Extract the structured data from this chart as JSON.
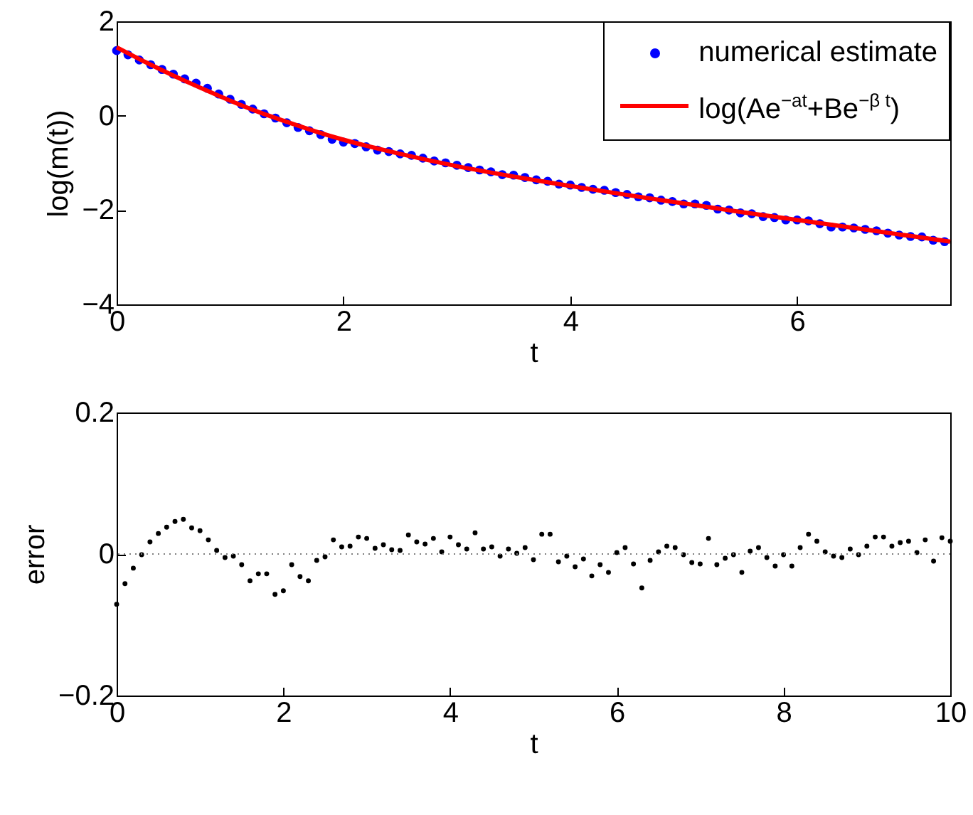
{
  "chart_data": [
    {
      "type": "scatter",
      "xlabel": "t",
      "ylabel": "log(m(t))",
      "xlim": [
        0,
        7.35
      ],
      "ylim": [
        -4,
        2
      ],
      "xticks": [
        0,
        2,
        4,
        6
      ],
      "yticks": [
        -4,
        -2,
        0,
        2
      ],
      "legend": "top right",
      "series": [
        {
          "name": "numerical estimate",
          "marker": "circle",
          "color": "#0000ff",
          "x": [
            0,
            0.1,
            0.2,
            0.3,
            0.4,
            0.5,
            0.6,
            0.7,
            0.8,
            0.9,
            1,
            1.1,
            1.2,
            1.3,
            1.4,
            1.5,
            1.6,
            1.7,
            1.8,
            1.9,
            2,
            2.1,
            2.2,
            2.3,
            2.4,
            2.5,
            2.6,
            2.7,
            2.8,
            2.9,
            3,
            3.1,
            3.2,
            3.3,
            3.4,
            3.5,
            3.6,
            3.7,
            3.8,
            3.9,
            4,
            4.1,
            4.2,
            4.3,
            4.4,
            4.5,
            4.6,
            4.7,
            4.8,
            4.9,
            5,
            5.1,
            5.2,
            5.3,
            5.4,
            5.5,
            5.6,
            5.7,
            5.8,
            5.9,
            6,
            6.1,
            6.2,
            6.3,
            6.4,
            6.5,
            6.6,
            6.7,
            6.8,
            6.9,
            7,
            7.1,
            7.2,
            7.3
          ],
          "values": [
            1.38,
            1.29,
            1.18,
            1.08,
            0.98,
            0.88,
            0.78,
            0.69,
            0.58,
            0.46,
            0.35,
            0.24,
            0.14,
            0.04,
            -0.05,
            -0.15,
            -0.25,
            -0.32,
            -0.4,
            -0.5,
            -0.56,
            -0.59,
            -0.66,
            -0.73,
            -0.76,
            -0.81,
            -0.84,
            -0.9,
            -0.96,
            -1.0,
            -1.05,
            -1.1,
            -1.15,
            -1.19,
            -1.25,
            -1.26,
            -1.31,
            -1.36,
            -1.39,
            -1.45,
            -1.47,
            -1.52,
            -1.56,
            -1.58,
            -1.63,
            -1.67,
            -1.72,
            -1.74,
            -1.79,
            -1.82,
            -1.87,
            -1.87,
            -1.9,
            -1.98,
            -2.0,
            -2.06,
            -2.08,
            -2.14,
            -2.16,
            -2.21,
            -2.21,
            -2.23,
            -2.29,
            -2.36,
            -2.36,
            -2.38,
            -2.41,
            -2.44,
            -2.49,
            -2.53,
            -2.56,
            -2.57,
            -2.64,
            -2.67
          ]
        },
        {
          "name": "log(Ae$^{−at}$+Be$^{−β t}$)",
          "type": "line",
          "color": "#ff0000",
          "x": [
            0,
            0.25,
            0.5,
            0.75,
            1,
            1.25,
            1.5,
            1.75,
            2,
            2.5,
            3,
            3.5,
            4,
            4.5,
            5,
            5.5,
            6,
            6.5,
            7,
            7.35
          ],
          "values": [
            1.45,
            1.14,
            0.85,
            0.58,
            0.32,
            0.08,
            -0.13,
            -0.33,
            -0.51,
            -0.81,
            -1.07,
            -1.29,
            -1.49,
            -1.68,
            -1.86,
            -2.04,
            -2.21,
            -2.38,
            -2.55,
            -2.67
          ]
        }
      ]
    },
    {
      "type": "scatter",
      "xlabel": "t",
      "ylabel": "error",
      "xlim": [
        0,
        10
      ],
      "ylim": [
        -0.2,
        0.2
      ],
      "xticks": [
        0,
        2,
        4,
        6,
        8,
        10
      ],
      "yticks": [
        -0.2,
        0,
        0.2
      ],
      "ref_lines": [
        {
          "axis": "y",
          "value": 0,
          "color": "#808080",
          "line_style": "dotted"
        }
      ],
      "series": [
        {
          "color": "#000000",
          "marker": "circle",
          "x": [
            0,
            0.1,
            0.2,
            0.3,
            0.4,
            0.5,
            0.6,
            0.7,
            0.8,
            0.9,
            1,
            1.1,
            1.2,
            1.3,
            1.4,
            1.5,
            1.6,
            1.7,
            1.8,
            1.9,
            2,
            2.1,
            2.2,
            2.3,
            2.4,
            2.5,
            2.6,
            2.7,
            2.8,
            2.9,
            3,
            3.1,
            3.2,
            3.3,
            3.4,
            3.5,
            3.6,
            3.7,
            3.8,
            3.9,
            4,
            4.1,
            4.2,
            4.3,
            4.4,
            4.5,
            4.6,
            4.7,
            4.8,
            4.9,
            5,
            5.1,
            5.2,
            5.3,
            5.4,
            5.5,
            5.6,
            5.7,
            5.8,
            5.9,
            6,
            6.1,
            6.2,
            6.3,
            6.4,
            6.5,
            6.6,
            6.7,
            6.8,
            6.9,
            7,
            7.1,
            7.2,
            7.3,
            7.4,
            7.5,
            7.6,
            7.7,
            7.8,
            7.9,
            8,
            8.1,
            8.2,
            8.3,
            8.4,
            8.5,
            8.6,
            8.7,
            8.8,
            8.9,
            9,
            9.1,
            9.2,
            9.3,
            9.4,
            9.5,
            9.6,
            9.7,
            9.8,
            9.9,
            10
          ],
          "values": [
            -0.071,
            -0.042,
            -0.02,
            -0.001,
            0.017,
            0.029,
            0.038,
            0.046,
            0.049,
            0.037,
            0.033,
            0.02,
            0.005,
            -0.005,
            -0.003,
            -0.015,
            -0.038,
            -0.028,
            -0.028,
            -0.057,
            -0.052,
            -0.015,
            -0.032,
            -0.038,
            -0.009,
            -0.004,
            0.02,
            0.01,
            0.011,
            0.024,
            0.022,
            0.008,
            0.013,
            0.006,
            0.005,
            0.027,
            0.017,
            0.014,
            0.022,
            0.003,
            0.024,
            0.013,
            0.007,
            0.03,
            0.007,
            0.01,
            -0.003,
            0.007,
            0.001,
            0.009,
            -0.008,
            0.028,
            0.028,
            -0.011,
            -0.003,
            -0.018,
            -0.007,
            -0.031,
            -0.015,
            -0.026,
            0.002,
            0.009,
            -0.014,
            -0.048,
            -0.009,
            0.003,
            0.011,
            0.009,
            -0.001,
            -0.012,
            -0.014,
            0.022,
            -0.015,
            -0.006,
            -0.001,
            -0.026,
            0.004,
            0.009,
            -0.005,
            -0.017,
            -0.001,
            -0.017,
            0.009,
            0.028,
            0.018,
            0.003,
            -0.003,
            -0.005,
            0.007,
            -0.001,
            0.011,
            0.024,
            0.024,
            0.011,
            0.016,
            0.018,
            0.002,
            0.02,
            -0.01,
            0.023,
            0.018
          ]
        }
      ]
    }
  ]
}
